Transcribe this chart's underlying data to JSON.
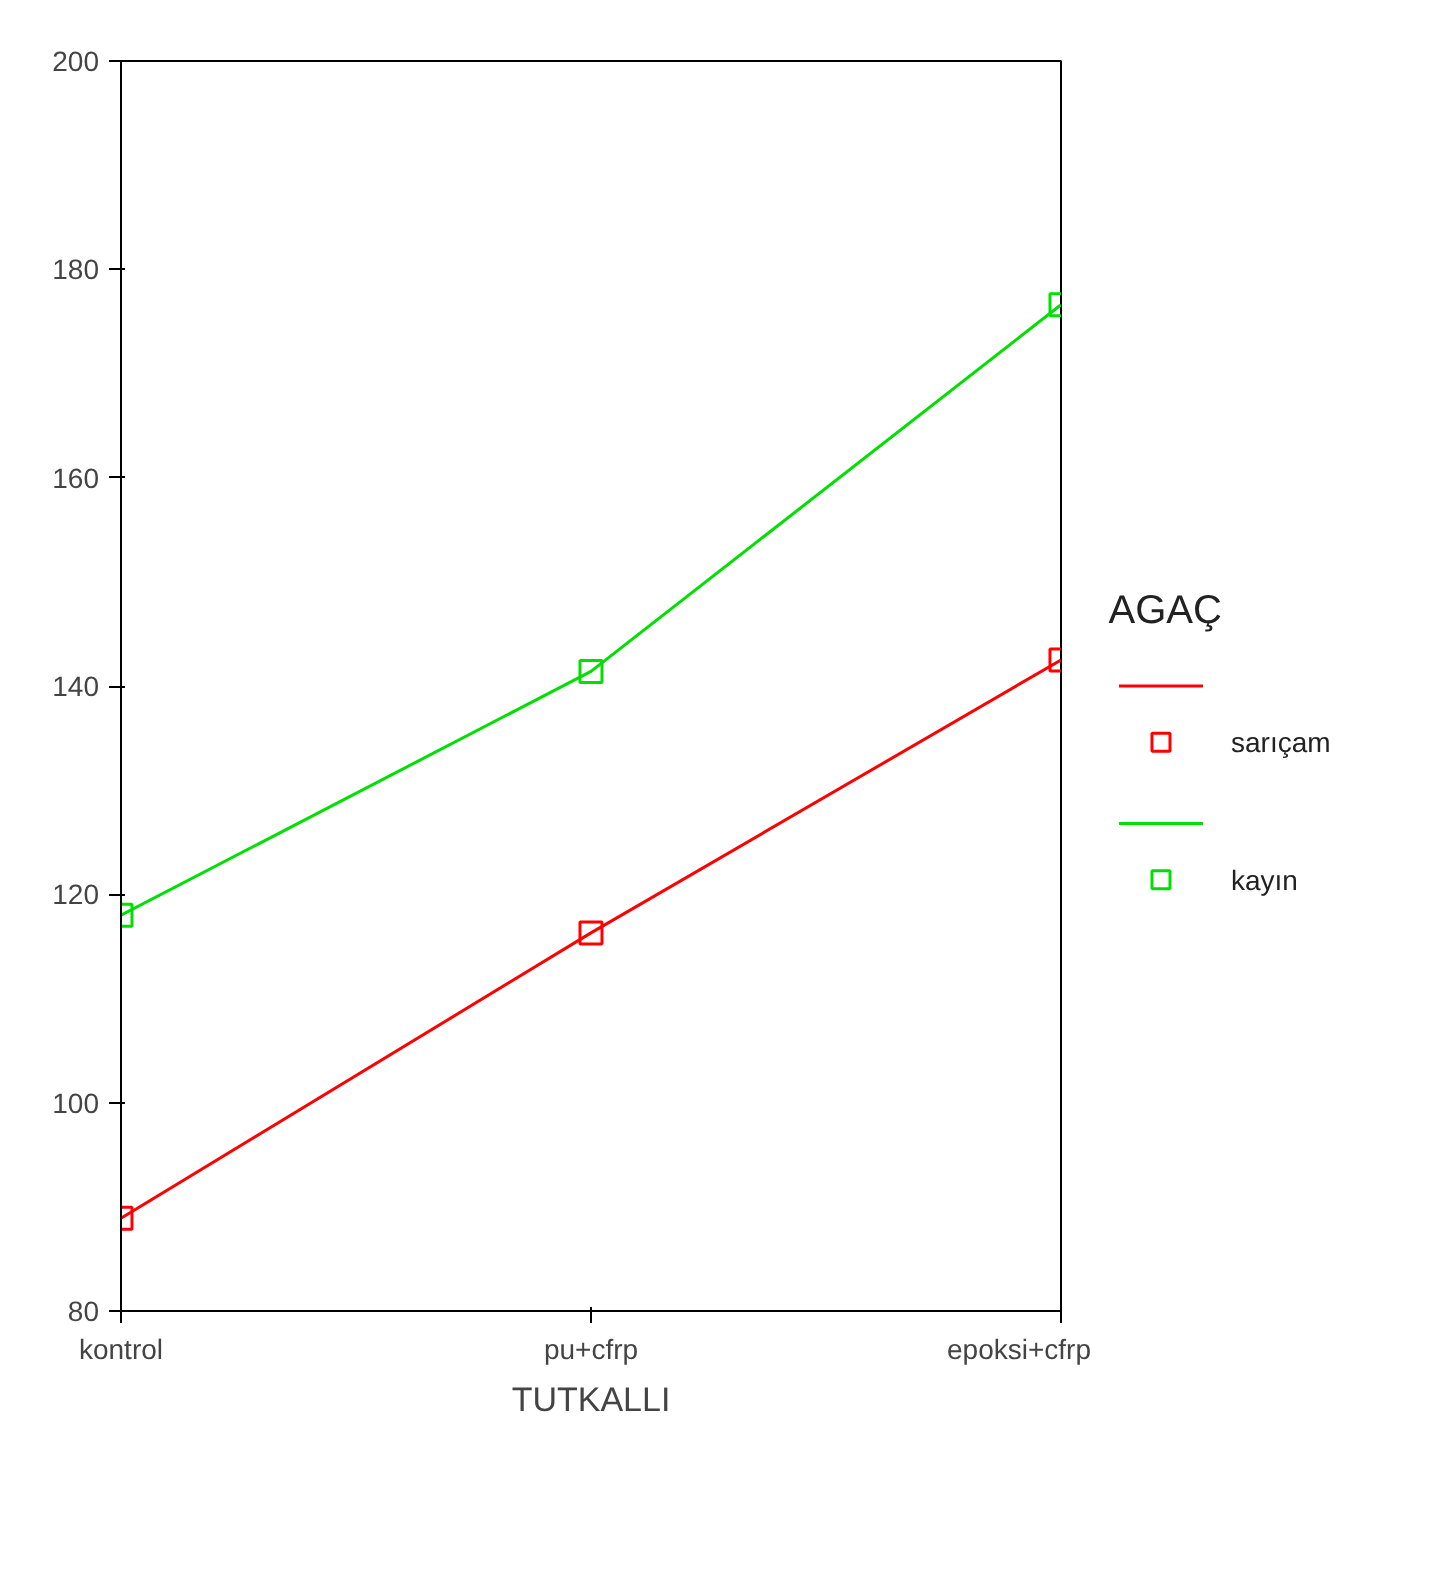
{
  "chart_data": {
    "type": "line",
    "xlabel": "TUTKALLI",
    "legend_title": "AGAÇ",
    "categories": [
      "kontrol",
      "pu+cfrp",
      "epoksi+cfrp"
    ],
    "series": [
      {
        "name": "sarıçam",
        "color": "#ff0000",
        "values": [
          88.9,
          116.3,
          142.5
        ]
      },
      {
        "name": "kayın",
        "color": "#00e000",
        "values": [
          118.0,
          141.4,
          176.6
        ]
      }
    ],
    "ylim": [
      80,
      200
    ],
    "yticks": [
      80,
      100,
      120,
      140,
      160,
      180,
      200
    ],
    "grid": false,
    "legend": "right",
    "marker": "square",
    "line_style": "solid"
  }
}
